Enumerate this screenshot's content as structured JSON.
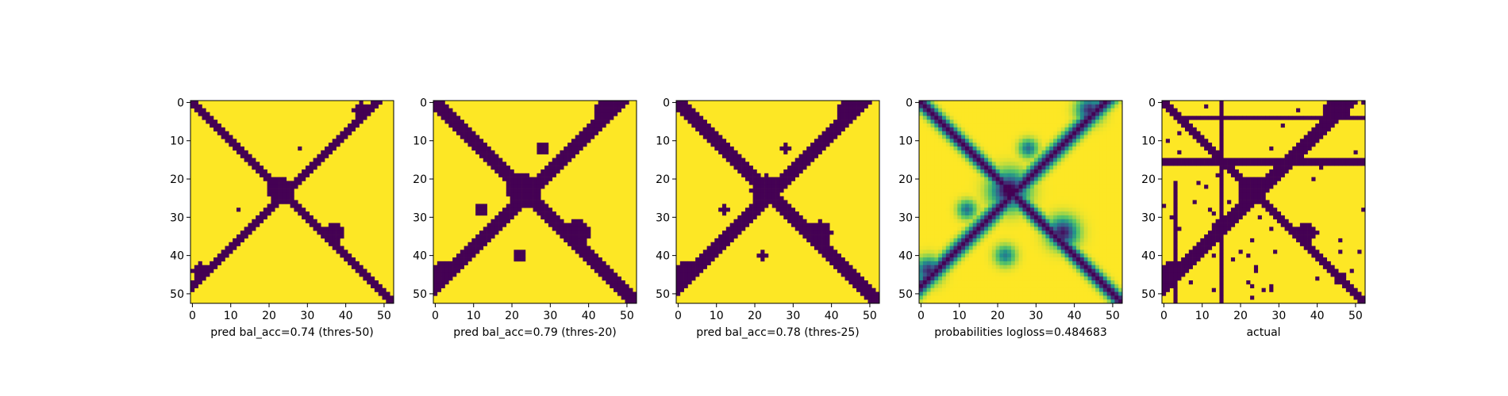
{
  "colors": {
    "background": "#440154",
    "foreground": "#fde725",
    "mid_teal": "#21918c",
    "mid_green": "#5ec962",
    "mid_blue": "#3b528b"
  },
  "chart_data": [
    {
      "type": "heatmap",
      "xlabel": "pred bal_acc=0.74 (thres-50)",
      "variant": "pred-50",
      "size": 53,
      "xticks": [
        0,
        10,
        20,
        30,
        40,
        50
      ],
      "yticks": [
        0,
        10,
        20,
        30,
        40,
        50
      ],
      "xlim": [
        0,
        52
      ],
      "ylim": [
        52,
        0
      ]
    },
    {
      "type": "heatmap",
      "xlabel": "pred bal_acc=0.79 (thres-20)",
      "variant": "pred-20",
      "size": 53,
      "xticks": [
        0,
        10,
        20,
        30,
        40,
        50
      ],
      "yticks": [
        0,
        10,
        20,
        30,
        40,
        50
      ],
      "xlim": [
        0,
        52
      ],
      "ylim": [
        52,
        0
      ]
    },
    {
      "type": "heatmap",
      "xlabel": "pred bal_acc=0.78 (thres-25)",
      "variant": "pred-25",
      "size": 53,
      "xticks": [
        0,
        10,
        20,
        30,
        40,
        50
      ],
      "yticks": [
        0,
        10,
        20,
        30,
        40,
        50
      ],
      "xlim": [
        0,
        52
      ],
      "ylim": [
        52,
        0
      ]
    },
    {
      "type": "heatmap",
      "xlabel": "probabilities logloss=0.484683",
      "variant": "probabilities",
      "size": 53,
      "xticks": [
        0,
        10,
        20,
        30,
        40,
        50
      ],
      "yticks": [
        0,
        10,
        20,
        30,
        40,
        50
      ],
      "xlim": [
        0,
        52
      ],
      "ylim": [
        52,
        0
      ]
    },
    {
      "type": "heatmap",
      "xlabel": "actual",
      "variant": "actual",
      "size": 53,
      "xticks": [
        0,
        10,
        20,
        30,
        40,
        50
      ],
      "yticks": [
        0,
        10,
        20,
        30,
        40,
        50
      ],
      "xlim": [
        0,
        52
      ],
      "ylim": [
        52,
        0
      ]
    }
  ]
}
